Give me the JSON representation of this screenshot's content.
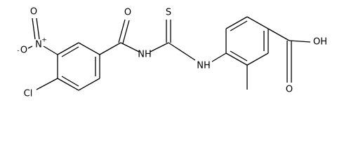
{
  "nodes": [
    {
      "label": "O"
    },
    {
      "label": "N",
      "charge": "+"
    },
    {
      "label": "O",
      "charge": "-"
    },
    {
      "label": "Cl"
    },
    {
      "label": "O"
    },
    {
      "label": "NH"
    },
    {
      "label": "S"
    },
    {
      "label": "NH"
    },
    {
      "label": "OH"
    },
    {
      "label": "O"
    }
  ]
}
